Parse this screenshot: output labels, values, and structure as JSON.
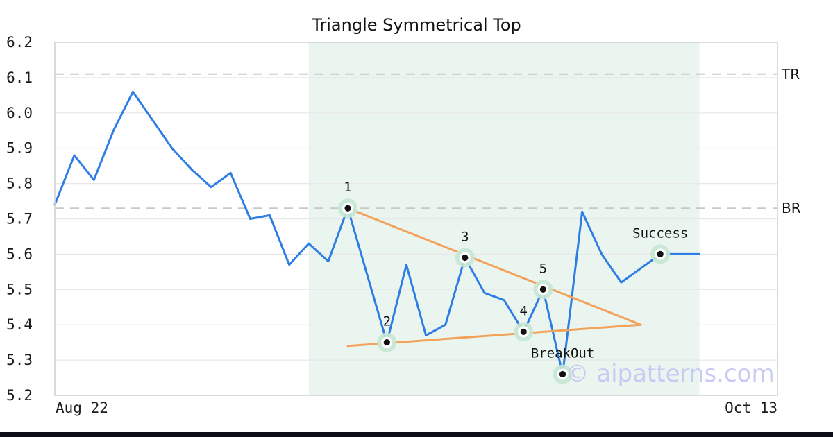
{
  "watermark": {
    "text": "© aipatterns.com"
  },
  "colors": {
    "price_line": "#2d7de4",
    "trend_line": "#f3a25b",
    "pattern_region": "#eaf5ef",
    "marker_halo": "#c6e7d3",
    "marker_dot": "#111111",
    "marker_ring": "#ffffff",
    "dashed_level": "#c8c8c8",
    "gridline": "#e8e8e8",
    "frame": "#d2d2d2",
    "watermark": "#c7cbf4",
    "bottom_bar": "#0b0e14",
    "text": "#111111"
  },
  "chart_data": {
    "type": "line",
    "title": "Triangle Symmetrical Top",
    "xlabel": "",
    "ylabel": "",
    "ylim": [
      5.2,
      6.2
    ],
    "xlim": [
      0,
      37
    ],
    "grid": "horizontal",
    "legend": "none",
    "y_ticks": [
      6.2,
      6.1,
      6.0,
      5.9,
      5.8,
      5.7,
      5.6,
      5.5,
      5.4,
      5.3,
      5.2
    ],
    "x_tick_labels": [
      "Aug 22",
      "Oct 13"
    ],
    "series": [
      {
        "name": "price",
        "x_start": 0,
        "values": [
          5.74,
          5.88,
          5.81,
          5.95,
          6.06,
          5.98,
          5.9,
          5.84,
          5.79,
          5.83,
          5.7,
          5.71,
          5.57,
          5.63,
          5.58,
          5.73,
          5.54,
          5.35,
          5.57,
          5.37,
          5.4,
          5.59,
          5.49,
          5.47,
          5.38,
          5.5,
          5.26,
          5.72,
          5.6,
          5.52,
          5.56,
          5.6,
          5.6,
          5.6
        ]
      }
    ],
    "markers": [
      {
        "x": 15,
        "y": 5.73,
        "label": "1"
      },
      {
        "x": 17,
        "y": 5.35,
        "label": "2"
      },
      {
        "x": 21,
        "y": 5.59,
        "label": "3"
      },
      {
        "x": 24,
        "y": 5.38,
        "label": "4"
      },
      {
        "x": 25,
        "y": 5.5,
        "label": "5"
      },
      {
        "x": 26,
        "y": 5.26,
        "label": "BreakOut"
      },
      {
        "x": 31,
        "y": 5.6,
        "label": "Success"
      }
    ],
    "trendlines": [
      {
        "name": "upper",
        "x": [
          15,
          30
        ],
        "y": [
          5.73,
          5.4
        ]
      },
      {
        "name": "lower",
        "x": [
          15,
          30
        ],
        "y": [
          5.34,
          5.4
        ]
      }
    ],
    "hlines": [
      {
        "y": 6.11,
        "label": "TR"
      },
      {
        "y": 5.73,
        "label": "BR"
      }
    ],
    "pattern_region": {
      "x0": 13,
      "x1": 33
    }
  }
}
